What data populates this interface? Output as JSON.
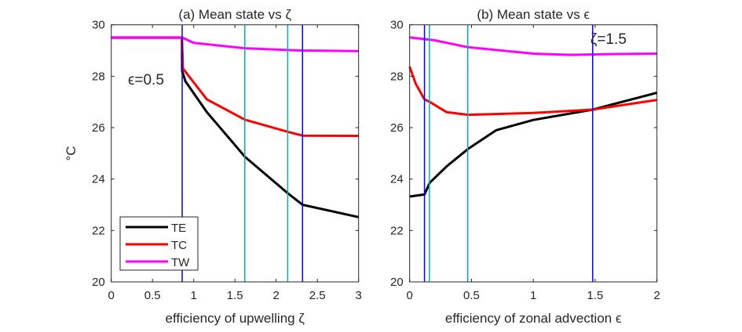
{
  "y_axis_label": "°C",
  "chart_data": [
    {
      "type": "line",
      "title": "(a) Mean state vs ζ",
      "xlabel": "efficiency of upwelling  ζ",
      "ylabel": "°C",
      "xlim": [
        0,
        3
      ],
      "ylim": [
        20,
        30
      ],
      "xticks": [
        0,
        0.5,
        1,
        1.5,
        2,
        2.5,
        3
      ],
      "xtick_labels": [
        "0",
        "0.5",
        "1",
        "1.5",
        "2",
        "2.5",
        "3"
      ],
      "yticks": [
        20,
        22,
        24,
        26,
        28,
        30
      ],
      "ytick_labels": [
        "20",
        "22",
        "24",
        "26",
        "28",
        "30"
      ],
      "annotation": "ϵ=0.5",
      "legend": {
        "placement": "bottom-left",
        "entries": [
          "TE",
          "TC",
          "TW"
        ]
      },
      "vlines": [
        {
          "x": 0.86,
          "color": "#0000ff"
        },
        {
          "x": 1.62,
          "color": "#00b3b3"
        },
        {
          "x": 2.14,
          "color": "#00b3b3"
        },
        {
          "x": 2.32,
          "color": "#0000ff"
        }
      ],
      "series": [
        {
          "name": "TE",
          "color": "#000000",
          "x": [
            0,
            0.857,
            0.86,
            0.9,
            1.16,
            1.48,
            1.62,
            2.14,
            2.32,
            3
          ],
          "y": [
            29.5,
            29.5,
            28.2,
            27.8,
            26.6,
            25.4,
            24.87,
            23.45,
            23.0,
            22.52
          ]
        },
        {
          "name": "TC",
          "color": "#ff0000",
          "x": [
            0,
            0.857,
            0.87,
            1.16,
            1.62,
            2.14,
            2.32,
            3
          ],
          "y": [
            29.5,
            29.5,
            28.3,
            27.1,
            26.31,
            25.84,
            25.69,
            25.68
          ]
        },
        {
          "name": "TW",
          "color": "#ff00ff",
          "x": [
            0,
            0.857,
            1.0,
            1.62,
            2.3,
            3
          ],
          "y": [
            29.51,
            29.51,
            29.3,
            29.09,
            29.0,
            28.98
          ]
        }
      ]
    },
    {
      "type": "line",
      "title": "(b) Mean state vs ϵ",
      "xlabel": "efficiency of zonal advection  ϵ",
      "ylabel": "",
      "xlim": [
        0,
        2
      ],
      "ylim": [
        20,
        30
      ],
      "xticks": [
        0,
        0.5,
        1,
        1.5,
        2
      ],
      "xtick_labels": [
        "0",
        "0.5",
        "1",
        "1.5",
        "2"
      ],
      "yticks": [
        20,
        22,
        24,
        26,
        28,
        30
      ],
      "ytick_labels": [
        "20",
        "22",
        "24",
        "26",
        "28",
        "30"
      ],
      "annotation": "ζ=1.5",
      "vlines": [
        {
          "x": 0.12,
          "color": "#0000ff"
        },
        {
          "x": 0.16,
          "color": "#00b3b3"
        },
        {
          "x": 0.47,
          "color": "#00b3b3"
        },
        {
          "x": 1.48,
          "color": "#0000ff"
        }
      ],
      "series": [
        {
          "name": "TE",
          "color": "#000000",
          "x": [
            0,
            0.12,
            0.163,
            0.3,
            0.472,
            0.7,
            1.0,
            1.48,
            2
          ],
          "y": [
            23.32,
            23.4,
            23.86,
            24.5,
            25.17,
            25.9,
            26.3,
            26.7,
            27.36
          ]
        },
        {
          "name": "TC",
          "color": "#ff0000",
          "x": [
            0,
            0.05,
            0.12,
            0.163,
            0.3,
            0.472,
            1.0,
            1.48,
            2
          ],
          "y": [
            28.37,
            27.7,
            27.1,
            27.0,
            26.6,
            26.5,
            26.57,
            26.7,
            27.08
          ]
        },
        {
          "name": "TW",
          "color": "#ff00ff",
          "x": [
            0,
            0.2,
            0.472,
            1.0,
            1.3,
            1.6,
            2
          ],
          "y": [
            29.51,
            29.4,
            29.13,
            28.88,
            28.83,
            28.86,
            28.88
          ]
        }
      ]
    }
  ]
}
